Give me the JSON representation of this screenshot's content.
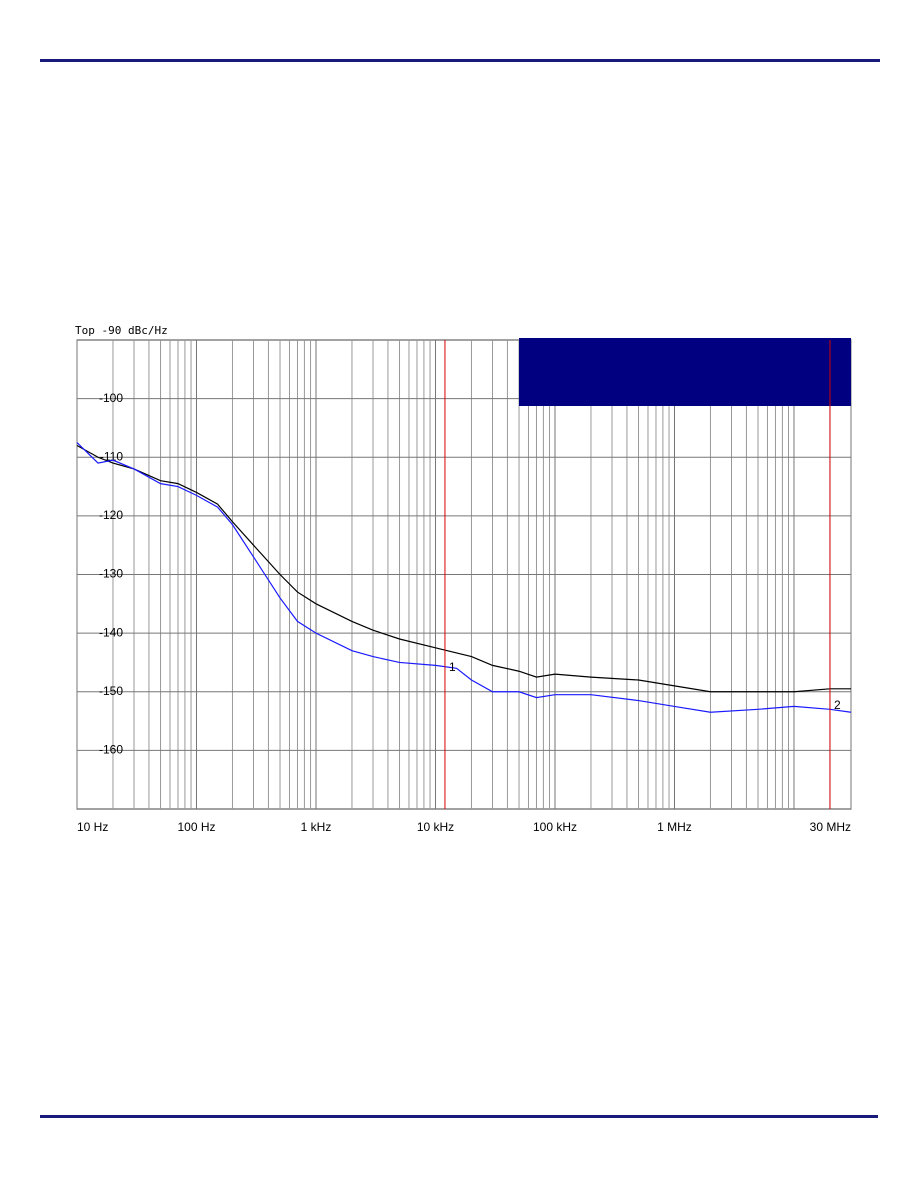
{
  "chart_data": {
    "type": "line",
    "title": "Top -90 dBc/Hz",
    "xscale": "log",
    "xlim": [
      10,
      30000000
    ],
    "ylim": [
      -170,
      -90
    ],
    "xticks": [
      {
        "value": 10,
        "label": "10 Hz"
      },
      {
        "value": 100,
        "label": "100 Hz"
      },
      {
        "value": 1000,
        "label": "1 kHz"
      },
      {
        "value": 10000,
        "label": "10 kHz"
      },
      {
        "value": 100000,
        "label": "100 kHz"
      },
      {
        "value": 1000000,
        "label": "1 MHz"
      },
      {
        "value": 30000000,
        "label": "30 MHz"
      }
    ],
    "yticks": [
      -100,
      -110,
      -120,
      -130,
      -140,
      -150,
      -160
    ],
    "grid": true,
    "minor_grid": true,
    "markers": [
      {
        "label": "1",
        "x": 12000,
        "color": "#d40000"
      },
      {
        "label": "2",
        "x": 20000000,
        "color": "#d40000"
      }
    ],
    "series": [
      {
        "color": "#000000",
        "x": [
          10,
          15,
          20,
          30,
          50,
          70,
          100,
          150,
          200,
          300,
          500,
          700,
          1000,
          2000,
          3000,
          5000,
          10000,
          20000,
          30000,
          50000,
          70000,
          100000,
          200000,
          500000,
          1000000,
          2000000,
          5000000,
          10000000,
          20000000,
          30000000
        ],
        "values": [
          -108,
          -110,
          -111,
          -112,
          -114,
          -114.5,
          -116,
          -118,
          -121,
          -125,
          -130,
          -133,
          -135,
          -138,
          -139.5,
          -141,
          -142.5,
          -144,
          -145.5,
          -146.5,
          -147.5,
          -147,
          -147.5,
          -148,
          -149,
          -150,
          -150,
          -150,
          -149.5,
          -149.5
        ]
      },
      {
        "color": "#1a1aff",
        "x": [
          10,
          15,
          20,
          30,
          50,
          70,
          100,
          150,
          200,
          300,
          500,
          700,
          1000,
          2000,
          3000,
          5000,
          10000,
          15000,
          20000,
          30000,
          50000,
          70000,
          100000,
          200000,
          500000,
          1000000,
          2000000,
          5000000,
          10000000,
          20000000,
          30000000
        ],
        "values": [
          -107.5,
          -111,
          -110.5,
          -112,
          -114.5,
          -115,
          -116.5,
          -118.5,
          -121.5,
          -127,
          -134,
          -138,
          -140,
          -143,
          -144,
          -145,
          -145.5,
          -146,
          -148,
          -150,
          -150,
          -151,
          -150.5,
          -150.5,
          -151.5,
          -152.5,
          -153.5,
          -153,
          -152.5,
          -153,
          -153.5
        ]
      }
    ]
  }
}
